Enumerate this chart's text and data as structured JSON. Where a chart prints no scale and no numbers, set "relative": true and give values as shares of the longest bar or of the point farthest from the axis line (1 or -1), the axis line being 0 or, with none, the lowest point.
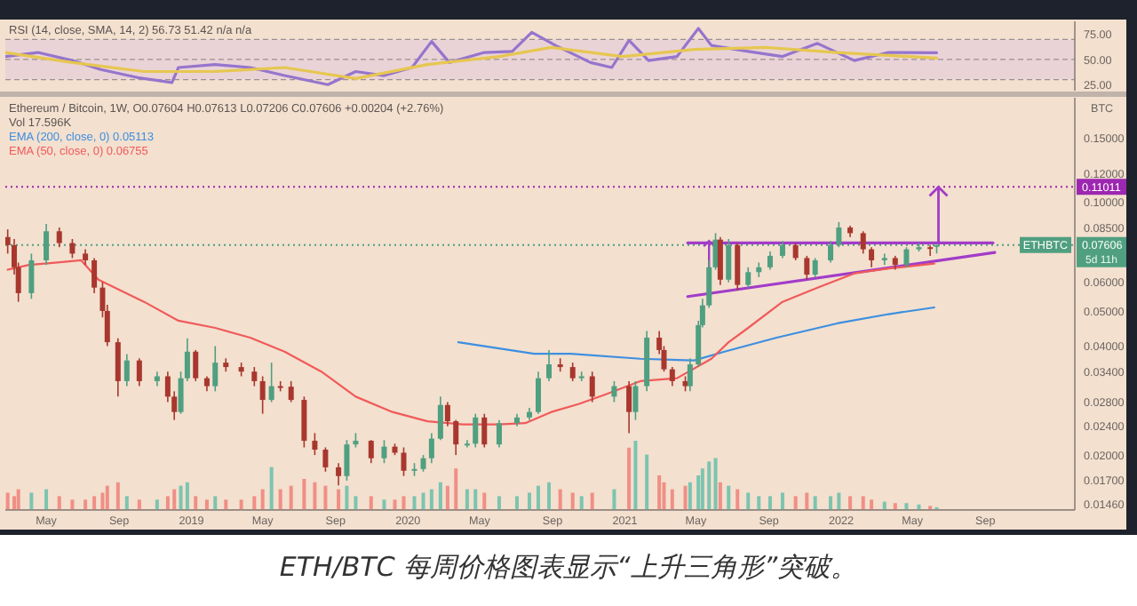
{
  "chart_data": [
    {
      "type": "line",
      "title": "RSI (14, close, SMA, 14, 2) 56.73 51.42 n/a n/a",
      "xlim": [
        "2018-02-21",
        "2023-01-30"
      ],
      "ylim": [
        19,
        88
      ],
      "yticks": [
        {
          "value": 25,
          "label": "25.00"
        },
        {
          "value": 50,
          "label": "50.00"
        },
        {
          "value": 75,
          "label": "75.00"
        }
      ],
      "tick_labels": "y",
      "bands": [
        {
          "axis": "y",
          "from": 30,
          "to": 70,
          "color": "#ead3d6"
        }
      ],
      "ref_lines": [
        {
          "axis": "y",
          "value": 70,
          "color": "#9a8f8f",
          "line_style": "dashed"
        },
        {
          "axis": "y",
          "value": 50,
          "color": "#9a8f8f",
          "line_style": "dashed"
        },
        {
          "axis": "y",
          "value": 30,
          "color": "#9a8f8f",
          "line_style": "dashed"
        }
      ],
      "series": [
        {
          "color": "#9575cd",
          "x": [
            "2018-02-21",
            "2018-04-17",
            "2018-06-14",
            "2018-08-01",
            "2018-10-02",
            "2018-11-29",
            "2018-12-10",
            "2019-02-10",
            "2019-04-10",
            "2019-06-07",
            "2019-08-19",
            "2019-10-05",
            "2019-11-22",
            "2020-01-08",
            "2020-02-10",
            "2020-03-11",
            "2020-05-09",
            "2020-06-25",
            "2020-07-28",
            "2020-09-06",
            "2020-11-04",
            "2020-12-10",
            "2021-01-08",
            "2021-02-10",
            "2021-03-30",
            "2021-05-05",
            "2021-05-27",
            "2021-07-28",
            "2021-09-24",
            "2021-11-22",
            "2022-01-23",
            "2022-03-22",
            "2022-06-11"
          ],
          "values": [
            53,
            57,
            49,
            40,
            32,
            27,
            42,
            45,
            42,
            34,
            25,
            38,
            34,
            42,
            68,
            47,
            57,
            58,
            77,
            64,
            47,
            42,
            69,
            49,
            53,
            81,
            64,
            58,
            53,
            66,
            49,
            57,
            56.73
          ]
        },
        {
          "color": "#e6c750",
          "x": [
            "2018-02-21",
            "2018-06-14",
            "2018-10-13",
            "2019-02-10",
            "2019-06-07",
            "2019-10-05",
            "2020-02-03",
            "2020-06-03",
            "2020-08-30",
            "2020-12-28",
            "2021-04-28",
            "2021-08-26",
            "2021-12-25",
            "2022-06-11"
          ],
          "values": [
            57,
            47,
            38,
            38,
            42,
            31,
            45,
            53,
            62,
            53,
            60,
            62,
            57,
            51.42
          ]
        }
      ]
    },
    {
      "type": "candlestick",
      "title": "Ethereum / Bitcoin, 1W, O0.07604 H0.07613 L0.07206 C0.07606 +0.00204 (+2.76%)",
      "ylabel": "BTC",
      "log": true,
      "legend": "top left",
      "xlim": [
        "2018-02-21",
        "2023-01-30"
      ],
      "ylim": [
        0.0141,
        0.194
      ],
      "xticks": [
        {
          "value": "2018-05-01",
          "label": "May"
        },
        {
          "value": "2018-09-01",
          "label": "Sep"
        },
        {
          "value": "2019-01-01",
          "label": "2019"
        },
        {
          "value": "2019-05-01",
          "label": "May"
        },
        {
          "value": "2019-09-01",
          "label": "Sep"
        },
        {
          "value": "2020-01-01",
          "label": "2020"
        },
        {
          "value": "2020-05-01",
          "label": "May"
        },
        {
          "value": "2020-09-01",
          "label": "Sep"
        },
        {
          "value": "2021-01-01",
          "label": "2021"
        },
        {
          "value": "2021-05-01",
          "label": "May"
        },
        {
          "value": "2021-09-01",
          "label": "Sep"
        },
        {
          "value": "2022-01-01",
          "label": "2022"
        },
        {
          "value": "2022-05-01",
          "label": "May"
        },
        {
          "value": "2022-09-01",
          "label": "Sep"
        }
      ],
      "yticks": [
        {
          "value": 0.0146,
          "label": "0.01460"
        },
        {
          "value": 0.017,
          "label": "0.01700"
        },
        {
          "value": 0.02,
          "label": "0.02000"
        },
        {
          "value": 0.024,
          "label": "0.02400"
        },
        {
          "value": 0.028,
          "label": "0.02800"
        },
        {
          "value": 0.034,
          "label": "0.03400"
        },
        {
          "value": 0.04,
          "label": "0.04000"
        },
        {
          "value": 0.05,
          "label": "0.05000"
        },
        {
          "value": 0.06,
          "label": "0.06000"
        },
        {
          "value": 0.085,
          "label": "0.08500"
        },
        {
          "value": 0.1,
          "label": "0.10000"
        },
        {
          "value": 0.12,
          "label": "0.12000"
        },
        {
          "value": 0.15,
          "label": "0.15000"
        }
      ],
      "ref_lines": [
        {
          "axis": "y",
          "value": 0.11011,
          "label": "0.11011",
          "color": "#9c27b0",
          "line_style": "dotted"
        },
        {
          "axis": "y",
          "value": 0.07606,
          "label": "0.07606",
          "color": "#4f9f80",
          "line_style": "dotted"
        }
      ],
      "annotations": [
        "ETHBTC",
        "5d 11h",
        "ETH/BTC 每周价格图表显示“上升三角形”突破。"
      ],
      "series": [
        {
          "type": "candlestick",
          "x": [
            "2018-02-25",
            "2018-03-08",
            "2018-03-15",
            "2018-04-06",
            "2018-05-01",
            "2018-05-23",
            "2018-06-14",
            "2018-07-06",
            "2018-07-21",
            "2018-08-04",
            "2018-08-12",
            "2018-08-30",
            "2018-09-14",
            "2018-10-05",
            "2018-11-04",
            "2018-11-22",
            "2018-12-03",
            "2018-12-14",
            "2018-12-25",
            "2019-01-08",
            "2019-01-27",
            "2019-02-10",
            "2019-02-28",
            "2019-03-26",
            "2019-04-17",
            "2019-05-01",
            "2019-05-16",
            "2019-05-31",
            "2019-06-18",
            "2019-07-10",
            "2019-07-28",
            "2019-08-15",
            "2019-09-06",
            "2019-09-20",
            "2019-10-05",
            "2019-10-31",
            "2019-11-22",
            "2019-12-10",
            "2019-12-25",
            "2020-01-12",
            "2020-01-27",
            "2020-02-10",
            "2020-02-25",
            "2020-03-08",
            "2020-03-22",
            "2020-04-10",
            "2020-04-24",
            "2020-05-09",
            "2020-06-03",
            "2020-07-03",
            "2020-07-24",
            "2020-08-08",
            "2020-08-26",
            "2020-09-14",
            "2020-10-05",
            "2020-10-20",
            "2020-11-07",
            "2020-12-14",
            "2021-01-08",
            "2021-01-19",
            "2021-02-07",
            "2021-02-28",
            "2021-03-08",
            "2021-03-22",
            "2021-04-13",
            "2021-04-21",
            "2021-05-05",
            "2021-05-12",
            "2021-05-23",
            "2021-06-03",
            "2021-06-11",
            "2021-06-25",
            "2021-07-10",
            "2021-07-28",
            "2021-08-15",
            "2021-09-03",
            "2021-09-24",
            "2021-10-16",
            "2021-11-04",
            "2021-11-18",
            "2021-12-14",
            "2021-12-28",
            "2022-01-16",
            "2022-02-07",
            "2022-02-21",
            "2022-03-15",
            "2022-04-02",
            "2022-04-21",
            "2022-05-12",
            "2022-05-31",
            "2022-06-11"
          ],
          "ohlc": [
            [
              0.08,
              0.084,
              0.072,
              0.076
            ],
            [
              0.076,
              0.079,
              0.063,
              0.066
            ],
            [
              0.066,
              0.068,
              0.053,
              0.056
            ],
            [
              0.056,
              0.072,
              0.054,
              0.069
            ],
            [
              0.069,
              0.087,
              0.067,
              0.083
            ],
            [
              0.083,
              0.085,
              0.075,
              0.077
            ],
            [
              0.077,
              0.079,
              0.07,
              0.072
            ],
            [
              0.072,
              0.074,
              0.067,
              0.069
            ],
            [
              0.069,
              0.07,
              0.056,
              0.058
            ],
            [
              0.058,
              0.06,
              0.048,
              0.05
            ],
            [
              0.05,
              0.052,
              0.04,
              0.041
            ],
            [
              0.041,
              0.042,
              0.029,
              0.032
            ],
            [
              0.032,
              0.038,
              0.031,
              0.0365
            ],
            [
              0.0365,
              0.037,
              0.031,
              0.032
            ],
            [
              0.032,
              0.034,
              0.031,
              0.033
            ],
            [
              0.033,
              0.034,
              0.028,
              0.029
            ],
            [
              0.029,
              0.03,
              0.025,
              0.0263
            ],
            [
              0.0263,
              0.034,
              0.026,
              0.0326
            ],
            [
              0.0326,
              0.042,
              0.032,
              0.0386
            ],
            [
              0.0386,
              0.039,
              0.032,
              0.0326
            ],
            [
              0.0326,
              0.033,
              0.03,
              0.031
            ],
            [
              0.031,
              0.04,
              0.03,
              0.036
            ],
            [
              0.036,
              0.037,
              0.034,
              0.035
            ],
            [
              0.035,
              0.036,
              0.033,
              0.034
            ],
            [
              0.034,
              0.035,
              0.031,
              0.032
            ],
            [
              0.032,
              0.033,
              0.026,
              0.0284
            ],
            [
              0.0284,
              0.036,
              0.028,
              0.031
            ],
            [
              0.031,
              0.032,
              0.03,
              0.0309
            ],
            [
              0.0309,
              0.032,
              0.028,
              0.0284
            ],
            [
              0.0284,
              0.029,
              0.021,
              0.0219
            ],
            [
              0.0219,
              0.023,
              0.02,
              0.0207
            ],
            [
              0.0207,
              0.021,
              0.018,
              0.0185
            ],
            [
              0.0185,
              0.019,
              0.0165,
              0.0175
            ],
            [
              0.0175,
              0.022,
              0.017,
              0.0214
            ],
            [
              0.0214,
              0.023,
              0.021,
              0.0219
            ],
            [
              0.0219,
              0.022,
              0.019,
              0.0196
            ],
            [
              0.0196,
              0.022,
              0.019,
              0.0211
            ],
            [
              0.0211,
              0.0215,
              0.02,
              0.0203
            ],
            [
              0.0203,
              0.021,
              0.0175,
              0.0181
            ],
            [
              0.0181,
              0.019,
              0.0175,
              0.0183
            ],
            [
              0.0183,
              0.02,
              0.018,
              0.0196
            ],
            [
              0.0196,
              0.023,
              0.019,
              0.0222
            ],
            [
              0.0222,
              0.029,
              0.022,
              0.0275
            ],
            [
              0.0275,
              0.028,
              0.024,
              0.0248
            ],
            [
              0.0248,
              0.025,
              0.02,
              0.0214
            ],
            [
              0.0214,
              0.022,
              0.021,
              0.0215
            ],
            [
              0.0215,
              0.026,
              0.021,
              0.0254
            ],
            [
              0.0254,
              0.026,
              0.021,
              0.0214
            ],
            [
              0.0214,
              0.025,
              0.021,
              0.0245
            ],
            [
              0.0245,
              0.026,
              0.024,
              0.0254
            ],
            [
              0.0254,
              0.027,
              0.025,
              0.0263
            ],
            [
              0.0263,
              0.034,
              0.026,
              0.0326
            ],
            [
              0.0326,
              0.039,
              0.032,
              0.0356
            ],
            [
              0.0356,
              0.037,
              0.034,
              0.035
            ],
            [
              0.035,
              0.036,
              0.032,
              0.0326
            ],
            [
              0.0326,
              0.034,
              0.032,
              0.033
            ],
            [
              0.033,
              0.034,
              0.028,
              0.029
            ],
            [
              0.029,
              0.032,
              0.028,
              0.031
            ],
            [
              0.031,
              0.032,
              0.023,
              0.0263
            ],
            [
              0.0263,
              0.032,
              0.025,
              0.031
            ],
            [
              0.031,
              0.044,
              0.03,
              0.0422
            ],
            [
              0.0422,
              0.044,
              0.038,
              0.039
            ],
            [
              0.039,
              0.04,
              0.034,
              0.0345
            ],
            [
              0.0345,
              0.035,
              0.031,
              0.032
            ],
            [
              0.032,
              0.033,
              0.03,
              0.031
            ],
            [
              0.031,
              0.037,
              0.03,
              0.0356
            ],
            [
              0.0356,
              0.047,
              0.035,
              0.0457
            ],
            [
              0.0457,
              0.054,
              0.045,
              0.0518
            ],
            [
              0.0518,
              0.069,
              0.051,
              0.066
            ],
            [
              0.066,
              0.082,
              0.065,
              0.0787
            ],
            [
              0.0787,
              0.08,
              0.059,
              0.061
            ],
            [
              0.061,
              0.079,
              0.06,
              0.076
            ],
            [
              0.076,
              0.077,
              0.057,
              0.059
            ],
            [
              0.059,
              0.066,
              0.058,
              0.064
            ],
            [
              0.064,
              0.068,
              0.062,
              0.066
            ],
            [
              0.066,
              0.073,
              0.065,
              0.071
            ],
            [
              0.071,
              0.078,
              0.07,
              0.076
            ],
            [
              0.076,
              0.077,
              0.069,
              0.07
            ],
            [
              0.07,
              0.071,
              0.061,
              0.063
            ],
            [
              0.063,
              0.07,
              0.062,
              0.069
            ],
            [
              0.069,
              0.078,
              0.068,
              0.076
            ],
            [
              0.076,
              0.088,
              0.075,
              0.085
            ],
            [
              0.085,
              0.086,
              0.08,
              0.082
            ],
            [
              0.082,
              0.083,
              0.072,
              0.074
            ],
            [
              0.074,
              0.075,
              0.066,
              0.069
            ],
            [
              0.069,
              0.072,
              0.067,
              0.07
            ],
            [
              0.07,
              0.071,
              0.065,
              0.067
            ],
            [
              0.067,
              0.075,
              0.066,
              0.074
            ],
            [
              0.074,
              0.077,
              0.073,
              0.075
            ],
            [
              0.075,
              0.076,
              0.071,
              0.0745
            ],
            [
              0.07604,
              0.07613,
              0.07206,
              0.07606
            ]
          ],
          "colors": [
            "#a8372e",
            "#a8372e",
            "#a8372e",
            "#4f9f80",
            "#4f9f80",
            "#a8372e",
            "#a8372e",
            "#a8372e",
            "#a8372e",
            "#a8372e",
            "#a8372e",
            "#a8372e",
            "#4f9f80",
            "#a8372e",
            "#4f9f80",
            "#a8372e",
            "#a8372e",
            "#4f9f80",
            "#4f9f80",
            "#a8372e",
            "#a8372e",
            "#4f9f80",
            "#a8372e",
            "#a8372e",
            "#a8372e",
            "#a8372e",
            "#4f9f80",
            "#a8372e",
            "#a8372e",
            "#a8372e",
            "#a8372e",
            "#a8372e",
            "#a8372e",
            "#4f9f80",
            "#4f9f80",
            "#a8372e",
            "#4f9f80",
            "#a8372e",
            "#a8372e",
            "#4f9f80",
            "#4f9f80",
            "#4f9f80",
            "#4f9f80",
            "#a8372e",
            "#a8372e",
            "#4f9f80",
            "#4f9f80",
            "#a8372e",
            "#4f9f80",
            "#4f9f80",
            "#4f9f80",
            "#4f9f80",
            "#4f9f80",
            "#a8372e",
            "#a8372e",
            "#4f9f80",
            "#a8372e",
            "#4f9f80",
            "#a8372e",
            "#4f9f80",
            "#4f9f80",
            "#a8372e",
            "#a8372e",
            "#a8372e",
            "#a8372e",
            "#4f9f80",
            "#4f9f80",
            "#4f9f80",
            "#4f9f80",
            "#4f9f80",
            "#a8372e",
            "#4f9f80",
            "#a8372e",
            "#4f9f80",
            "#4f9f80",
            "#4f9f80",
            "#4f9f80",
            "#a8372e",
            "#a8372e",
            "#4f9f80",
            "#4f9f80",
            "#4f9f80",
            "#a8372e",
            "#a8372e",
            "#a8372e",
            "#4f9f80",
            "#a8372e",
            "#4f9f80",
            "#4f9f80",
            "#a8372e",
            "#4f9f80"
          ]
        },
        {
          "type": "line",
          "color": "#a23cc8",
          "x": [
            "2021-04-17",
            "2022-09-14"
          ],
          "values": [
            0.0771,
            0.0771
          ]
        },
        {
          "type": "line",
          "color": "#a23cc8",
          "x": [
            "2021-04-17",
            "2022-09-17"
          ],
          "values": [
            0.0548,
            0.0725
          ]
        },
        {
          "type": "line",
          "name": "EMA (200, close, 0) 0.05113",
          "color": "#3d8fe0",
          "x": [
            "2020-03-26",
            "2020-08-01",
            "2020-10-02",
            "2021-01-27",
            "2021-04-28",
            "2021-06-18",
            "2021-09-14",
            "2021-12-25",
            "2022-03-22",
            "2022-06-07"
          ],
          "values": [
            0.041,
            0.0381,
            0.0381,
            0.0369,
            0.0365,
            0.0386,
            0.0422,
            0.0462,
            0.049,
            0.05113
          ]
        },
        {
          "type": "line",
          "name": "EMA (50, close, 0) 0.06755",
          "color": "#f05a5a",
          "x": [
            "2018-02-25",
            "2018-04-02",
            "2018-05-16",
            "2018-06-29",
            "2018-07-28",
            "2018-10-13",
            "2018-12-10",
            "2019-02-10",
            "2019-04-10",
            "2019-06-07",
            "2019-08-08",
            "2019-10-05",
            "2019-12-06",
            "2020-02-03",
            "2020-04-02",
            "2020-06-03",
            "2020-07-17",
            "2020-08-30",
            "2020-10-16",
            "2020-11-29",
            "2021-01-27",
            "2021-03-30",
            "2021-05-27",
            "2021-06-25",
            "2021-07-28",
            "2021-09-24",
            "2021-11-22",
            "2022-01-23",
            "2022-03-22",
            "2022-06-07"
          ],
          "values": [
            0.065,
            0.067,
            0.068,
            0.069,
            0.061,
            0.053,
            0.047,
            0.0449,
            0.0422,
            0.0386,
            0.034,
            0.029,
            0.0263,
            0.0248,
            0.0243,
            0.0243,
            0.0245,
            0.0263,
            0.0277,
            0.0294,
            0.032,
            0.0326,
            0.0369,
            0.041,
            0.0449,
            0.053,
            0.058,
            0.0635,
            0.0655,
            0.06755
          ]
        }
      ]
    },
    {
      "type": "bar",
      "title": "Vol 17.596K",
      "relative": true,
      "tick_labels": false,
      "xlim": [
        "2018-02-21",
        "2023-01-30"
      ],
      "x": [
        "2018-02-25",
        "2018-03-08",
        "2018-03-15",
        "2018-04-06",
        "2018-05-01",
        "2018-05-23",
        "2018-06-14",
        "2018-07-06",
        "2018-07-21",
        "2018-08-04",
        "2018-08-12",
        "2018-08-30",
        "2018-09-14",
        "2018-10-05",
        "2018-11-04",
        "2018-11-22",
        "2018-12-03",
        "2018-12-14",
        "2018-12-25",
        "2019-01-08",
        "2019-01-27",
        "2019-02-10",
        "2019-02-28",
        "2019-03-26",
        "2019-04-17",
        "2019-05-01",
        "2019-05-16",
        "2019-05-31",
        "2019-06-18",
        "2019-07-10",
        "2019-07-28",
        "2019-08-15",
        "2019-09-06",
        "2019-09-20",
        "2019-10-05",
        "2019-10-31",
        "2019-11-22",
        "2019-12-10",
        "2019-12-25",
        "2020-01-12",
        "2020-01-27",
        "2020-02-10",
        "2020-02-25",
        "2020-03-08",
        "2020-03-22",
        "2020-04-10",
        "2020-04-24",
        "2020-05-09",
        "2020-06-03",
        "2020-07-03",
        "2020-07-24",
        "2020-08-08",
        "2020-08-26",
        "2020-09-14",
        "2020-10-05",
        "2020-10-20",
        "2020-11-07",
        "2020-12-14",
        "2021-01-08",
        "2021-01-19",
        "2021-02-07",
        "2021-02-28",
        "2021-03-08",
        "2021-03-22",
        "2021-04-13",
        "2021-04-21",
        "2021-05-05",
        "2021-05-12",
        "2021-05-23",
        "2021-06-03",
        "2021-06-11",
        "2021-06-25",
        "2021-07-10",
        "2021-07-28",
        "2021-08-15",
        "2021-09-03",
        "2021-09-24",
        "2021-10-16",
        "2021-11-04",
        "2021-11-18",
        "2021-12-14",
        "2021-12-28",
        "2022-01-16",
        "2022-02-07",
        "2022-02-21",
        "2022-03-15",
        "2022-04-02",
        "2022-04-21",
        "2022-05-12",
        "2022-05-31",
        "2022-06-11"
      ],
      "values": [
        0.25,
        0.2,
        0.3,
        0.25,
        0.3,
        0.2,
        0.15,
        0.15,
        0.2,
        0.25,
        0.35,
        0.4,
        0.2,
        0.15,
        0.15,
        0.2,
        0.3,
        0.35,
        0.4,
        0.2,
        0.15,
        0.2,
        0.15,
        0.15,
        0.2,
        0.3,
        0.62,
        0.3,
        0.35,
        0.45,
        0.4,
        0.35,
        0.3,
        0.35,
        0.2,
        0.2,
        0.15,
        0.15,
        0.2,
        0.2,
        0.25,
        0.3,
        0.4,
        0.35,
        0.6,
        0.3,
        0.3,
        0.25,
        0.2,
        0.2,
        0.25,
        0.35,
        0.4,
        0.3,
        0.25,
        0.2,
        0.25,
        0.3,
        0.9,
        1,
        0.8,
        0.5,
        0.4,
        0.3,
        0.35,
        0.4,
        0.5,
        0.6,
        0.7,
        0.75,
        0.4,
        0.35,
        0.3,
        0.25,
        0.2,
        0.2,
        0.25,
        0.2,
        0.25,
        0.2,
        0.2,
        0.25,
        0.2,
        0.2,
        0.15,
        0.12,
        0.1,
        0.1,
        0.08,
        0.06,
        0.04
      ],
      "colors": [
        "#f08f86",
        "#f08f86",
        "#f08f86",
        "#7cc4b0",
        "#7cc4b0",
        "#f08f86",
        "#f08f86",
        "#f08f86",
        "#f08f86",
        "#f08f86",
        "#f08f86",
        "#f08f86",
        "#7cc4b0",
        "#f08f86",
        "#7cc4b0",
        "#f08f86",
        "#f08f86",
        "#7cc4b0",
        "#7cc4b0",
        "#f08f86",
        "#f08f86",
        "#7cc4b0",
        "#f08f86",
        "#f08f86",
        "#f08f86",
        "#f08f86",
        "#7cc4b0",
        "#f08f86",
        "#f08f86",
        "#f08f86",
        "#f08f86",
        "#f08f86",
        "#f08f86",
        "#7cc4b0",
        "#7cc4b0",
        "#f08f86",
        "#7cc4b0",
        "#f08f86",
        "#f08f86",
        "#7cc4b0",
        "#7cc4b0",
        "#7cc4b0",
        "#7cc4b0",
        "#f08f86",
        "#f08f86",
        "#7cc4b0",
        "#7cc4b0",
        "#f08f86",
        "#7cc4b0",
        "#7cc4b0",
        "#7cc4b0",
        "#7cc4b0",
        "#7cc4b0",
        "#f08f86",
        "#f08f86",
        "#7cc4b0",
        "#f08f86",
        "#7cc4b0",
        "#f08f86",
        "#7cc4b0",
        "#7cc4b0",
        "#f08f86",
        "#f08f86",
        "#f08f86",
        "#f08f86",
        "#7cc4b0",
        "#7cc4b0",
        "#7cc4b0",
        "#7cc4b0",
        "#7cc4b0",
        "#f08f86",
        "#7cc4b0",
        "#f08f86",
        "#7cc4b0",
        "#7cc4b0",
        "#7cc4b0",
        "#7cc4b0",
        "#f08f86",
        "#f08f86",
        "#7cc4b0",
        "#7cc4b0",
        "#7cc4b0",
        "#f08f86",
        "#f08f86",
        "#f08f86",
        "#7cc4b0",
        "#f08f86",
        "#7cc4b0",
        "#7cc4b0",
        "#f08f86",
        "#7cc4b0"
      ]
    }
  ]
}
